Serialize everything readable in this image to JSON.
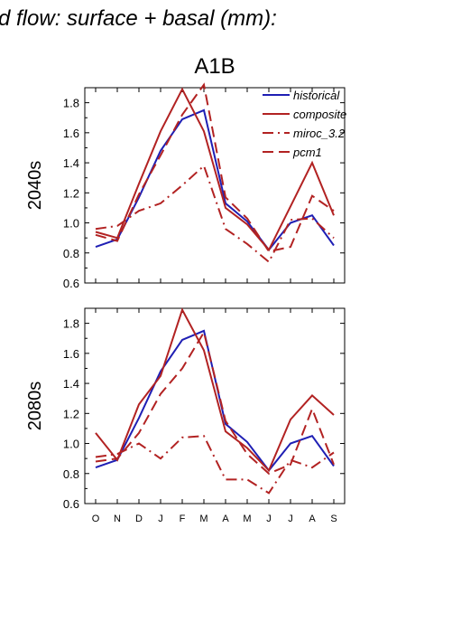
{
  "figure": {
    "header": "d flow: surface + basal (mm):",
    "scenario": "A1B"
  },
  "colors": {
    "historical": "#1f1fb4",
    "model": "#b22222",
    "axis": "#000000"
  },
  "chart_data": [
    {
      "type": "line",
      "panel_label": "2040s",
      "categories": [
        "O",
        "N",
        "D",
        "J",
        "F",
        "M",
        "A",
        "M",
        "J",
        "J",
        "A",
        "S"
      ],
      "ylim": [
        0.6,
        1.9
      ],
      "yticks": [
        "0.6",
        "0.8",
        "1.0",
        "1.2",
        "1.4",
        "1.6",
        "1.8"
      ],
      "legend_position": "top-right",
      "series": [
        {
          "name": "historical",
          "style": "solid",
          "color": "#1f1fb4",
          "values": [
            0.84,
            0.89,
            1.17,
            1.48,
            1.69,
            1.75,
            1.13,
            1.01,
            0.82,
            1.0,
            1.05,
            0.85
          ]
        },
        {
          "name": "composite",
          "style": "solid",
          "color": "#b22222",
          "values": [
            0.94,
            0.9,
            1.26,
            1.61,
            1.89,
            1.61,
            1.1,
            0.99,
            0.82,
            1.11,
            1.4,
            1.05
          ]
        },
        {
          "name": "miroc_3.2",
          "style": "dashdot",
          "color": "#b22222",
          "values": [
            0.96,
            0.98,
            1.08,
            1.13,
            1.25,
            1.38,
            0.96,
            0.86,
            0.74,
            1.02,
            1.03,
            0.9
          ]
        },
        {
          "name": "pcm1",
          "style": "dashed",
          "color": "#b22222",
          "values": [
            0.92,
            0.88,
            1.19,
            1.45,
            1.72,
            1.92,
            1.17,
            1.03,
            0.81,
            0.84,
            1.18,
            1.08
          ]
        }
      ]
    },
    {
      "type": "line",
      "panel_label": "2080s",
      "categories": [
        "O",
        "N",
        "D",
        "J",
        "F",
        "M",
        "A",
        "M",
        "J",
        "J",
        "A",
        "S"
      ],
      "ylim": [
        0.6,
        1.9
      ],
      "yticks": [
        "0.6",
        "0.8",
        "1.0",
        "1.2",
        "1.4",
        "1.6",
        "1.8"
      ],
      "series": [
        {
          "name": "historical",
          "style": "solid",
          "color": "#1f1fb4",
          "values": [
            0.84,
            0.89,
            1.17,
            1.48,
            1.69,
            1.75,
            1.13,
            1.01,
            0.82,
            1.0,
            1.05,
            0.85
          ]
        },
        {
          "name": "composite",
          "style": "solid",
          "color": "#b22222",
          "values": [
            1.07,
            0.89,
            1.26,
            1.45,
            1.89,
            1.62,
            1.08,
            0.97,
            0.82,
            1.16,
            1.32,
            1.19
          ]
        },
        {
          "name": "miroc_3.2",
          "style": "dashdot",
          "color": "#b22222",
          "values": [
            0.91,
            0.93,
            1.0,
            0.9,
            1.04,
            1.05,
            0.76,
            0.76,
            0.67,
            0.89,
            0.84,
            0.94
          ]
        },
        {
          "name": "pcm1",
          "style": "dashed",
          "color": "#b22222",
          "values": [
            0.88,
            0.9,
            1.07,
            1.33,
            1.5,
            1.74,
            1.15,
            0.93,
            0.8,
            0.86,
            1.23,
            0.86
          ]
        }
      ]
    }
  ]
}
